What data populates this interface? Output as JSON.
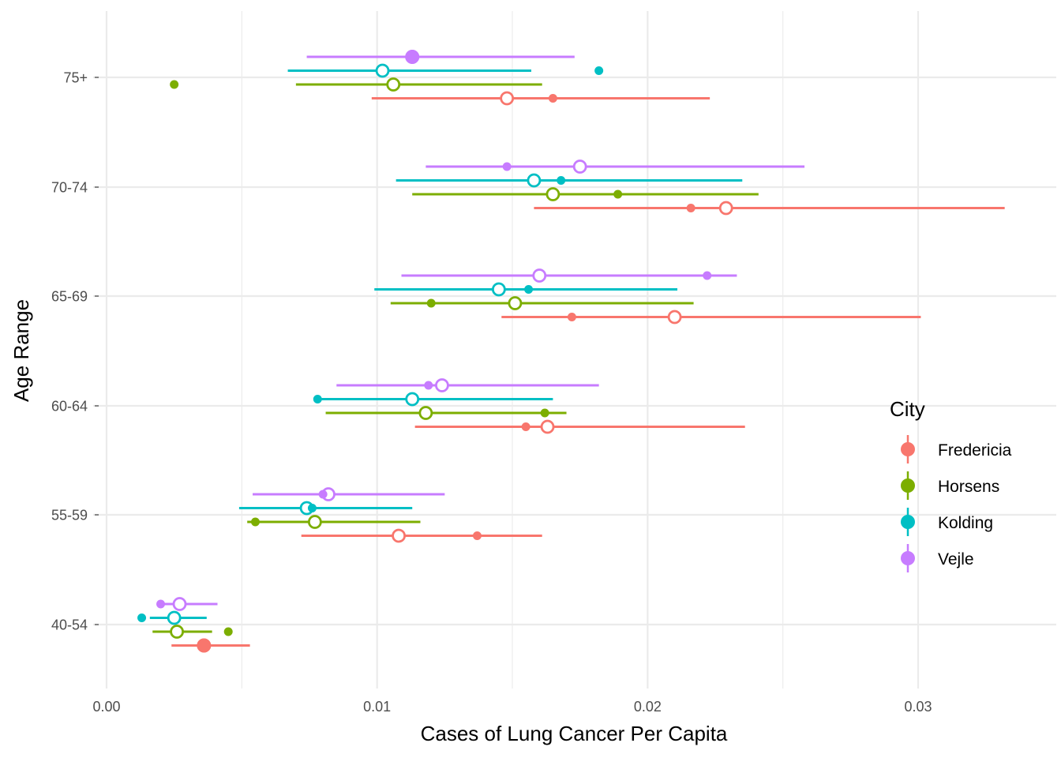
{
  "chart_data": {
    "type": "scatter",
    "subtype": "dot-interval (point + horizontal range) grouped by category",
    "title": "",
    "xlabel": "Cases of Lung Cancer Per Capita",
    "ylabel": "Age Range",
    "xlim": [
      -0.0003,
      0.0352
    ],
    "x_ticks": [
      0.0,
      0.01,
      0.02,
      0.03
    ],
    "x_tick_labels": [
      "0.00",
      "0.01",
      "0.02",
      "0.03"
    ],
    "x_minor_ticks": [
      0.005,
      0.015,
      0.025
    ],
    "categories": [
      "40-54",
      "55-59",
      "60-64",
      "65-69",
      "70-74",
      "75+"
    ],
    "grid": true,
    "legend": {
      "title": "City",
      "placement": "right",
      "entries": [
        {
          "name": "Fredericia",
          "color": "#F8766D"
        },
        {
          "name": "Horsens",
          "color": "#7CAE00"
        },
        {
          "name": "Kolding",
          "color": "#00BFC4"
        },
        {
          "name": "Vejle",
          "color": "#C77CFF"
        }
      ]
    },
    "series": [
      {
        "name": "Fredericia",
        "color": "#F8766D",
        "points": [
          {
            "category": "40-54",
            "low": 0.0024,
            "high": 0.0053,
            "open_point": 0.0036,
            "filled_point": 0.0036
          },
          {
            "category": "55-59",
            "low": 0.0072,
            "high": 0.0161,
            "open_point": 0.0108,
            "filled_point": 0.0137
          },
          {
            "category": "60-64",
            "low": 0.0114,
            "high": 0.0236,
            "open_point": 0.0163,
            "filled_point": 0.0155
          },
          {
            "category": "65-69",
            "low": 0.0146,
            "high": 0.0301,
            "open_point": 0.021,
            "filled_point": 0.0172
          },
          {
            "category": "70-74",
            "low": 0.0158,
            "high": 0.0332,
            "open_point": 0.0229,
            "filled_point": 0.0216
          },
          {
            "category": "75+",
            "low": 0.0098,
            "high": 0.0223,
            "open_point": 0.0148,
            "filled_point": 0.0165
          }
        ]
      },
      {
        "name": "Horsens",
        "color": "#7CAE00",
        "points": [
          {
            "category": "40-54",
            "low": 0.0017,
            "high": 0.0039,
            "open_point": 0.0026,
            "filled_point": 0.0045
          },
          {
            "category": "55-59",
            "low": 0.0052,
            "high": 0.0116,
            "open_point": 0.0077,
            "filled_point": 0.0055
          },
          {
            "category": "60-64",
            "low": 0.0081,
            "high": 0.017,
            "open_point": 0.0118,
            "filled_point": 0.0162
          },
          {
            "category": "65-69",
            "low": 0.0105,
            "high": 0.0217,
            "open_point": 0.0151,
            "filled_point": 0.012
          },
          {
            "category": "70-74",
            "low": 0.0113,
            "high": 0.0241,
            "open_point": 0.0165,
            "filled_point": 0.0189
          },
          {
            "category": "75+",
            "low": 0.007,
            "high": 0.0161,
            "open_point": 0.0106,
            "filled_point": 0.0025
          }
        ]
      },
      {
        "name": "Kolding",
        "color": "#00BFC4",
        "points": [
          {
            "category": "40-54",
            "low": 0.0016,
            "high": 0.0037,
            "open_point": 0.0025,
            "filled_point": 0.0013
          },
          {
            "category": "55-59",
            "low": 0.0049,
            "high": 0.0113,
            "open_point": 0.0074,
            "filled_point": 0.0076
          },
          {
            "category": "60-64",
            "low": 0.0078,
            "high": 0.0165,
            "open_point": 0.0113,
            "filled_point": 0.0078
          },
          {
            "category": "65-69",
            "low": 0.0099,
            "high": 0.0211,
            "open_point": 0.0145,
            "filled_point": 0.0156
          },
          {
            "category": "70-74",
            "low": 0.0107,
            "high": 0.0235,
            "open_point": 0.0158,
            "filled_point": 0.0168
          },
          {
            "category": "75+",
            "low": 0.0067,
            "high": 0.0157,
            "open_point": 0.0102,
            "filled_point": 0.0182
          }
        ]
      },
      {
        "name": "Vejle",
        "color": "#C77CFF",
        "points": [
          {
            "category": "40-54",
            "low": 0.002,
            "high": 0.0041,
            "open_point": 0.0027,
            "filled_point": 0.002
          },
          {
            "category": "55-59",
            "low": 0.0054,
            "high": 0.0125,
            "open_point": 0.0082,
            "filled_point": 0.008
          },
          {
            "category": "60-64",
            "low": 0.0085,
            "high": 0.0182,
            "open_point": 0.0124,
            "filled_point": 0.0119
          },
          {
            "category": "65-69",
            "low": 0.0109,
            "high": 0.0233,
            "open_point": 0.016,
            "filled_point": 0.0222
          },
          {
            "category": "70-74",
            "low": 0.0118,
            "high": 0.0258,
            "open_point": 0.0175,
            "filled_point": 0.0148
          },
          {
            "category": "75+",
            "low": 0.0074,
            "high": 0.0173,
            "open_point": 0.0113,
            "filled_point": 0.0113
          }
        ]
      }
    ]
  }
}
